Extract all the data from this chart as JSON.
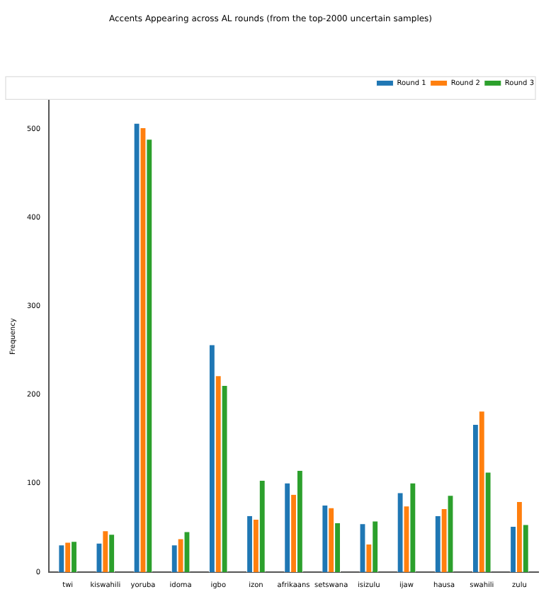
{
  "chart_data": {
    "type": "bar",
    "title": "Accents Appearing across AL rounds (from the top-2000 uncertain samples)",
    "ylabel": "Frequency",
    "categories": [
      "twi",
      "kiswahili",
      "yoruba",
      "idoma",
      "igbo",
      "izon",
      "afrikaans",
      "setswana",
      "isizulu",
      "ijaw",
      "hausa",
      "swahili",
      "zulu"
    ],
    "series": [
      {
        "name": "Round 1",
        "color": "#1f77b4",
        "values": [
          31,
          33,
          507,
          31,
          257,
          64,
          101,
          76,
          55,
          90,
          64,
          167,
          52
        ]
      },
      {
        "name": "Round 2",
        "color": "#ff7f0e",
        "values": [
          34,
          47,
          502,
          38,
          222,
          60,
          88,
          73,
          32,
          75,
          72,
          182,
          80
        ]
      },
      {
        "name": "Round 3",
        "color": "#2ca02c",
        "values": [
          35,
          43,
          489,
          46,
          211,
          104,
          115,
          56,
          58,
          101,
          87,
          113,
          54
        ]
      }
    ],
    "ylim": [
      0,
      532
    ],
    "yticks": [
      0,
      100,
      200,
      300,
      400,
      500
    ],
    "grid": false,
    "legend": "top right"
  }
}
